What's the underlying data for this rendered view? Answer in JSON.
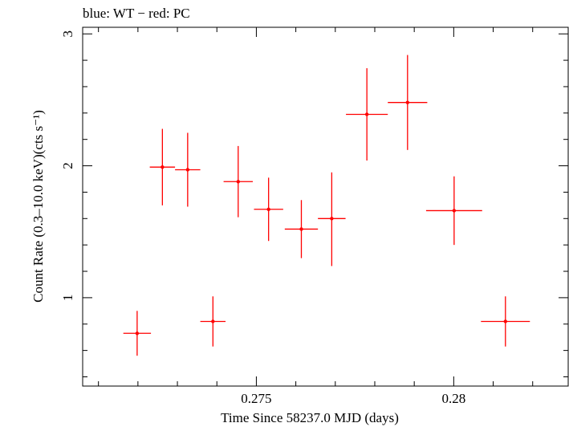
{
  "chart_data": {
    "type": "scatter",
    "title": "blue: WT − red: PC",
    "xlabel": "Time Since 58237.0 MJD (days)",
    "ylabel": "Count Rate (0.3–10.0 keV)(cts s⁻¹)",
    "xlim": [
      0.2706,
      0.2829
    ],
    "ylim": [
      0.33,
      3.05
    ],
    "x_ticks": [
      {
        "value": 0.275,
        "label": "0.275"
      },
      {
        "value": 0.28,
        "label": "0.28"
      }
    ],
    "y_ticks": [
      {
        "value": 1,
        "label": "1"
      },
      {
        "value": 2,
        "label": "2"
      },
      {
        "value": 3,
        "label": "3"
      }
    ],
    "colors": {
      "PC": "#ff0000",
      "axes": "#000000"
    },
    "series": [
      {
        "name": "PC",
        "color": "#ff0000",
        "points": [
          {
            "x": 0.27198,
            "xerr": 0.00035,
            "y": 0.73,
            "ylo": 0.56,
            "yhi": 0.9
          },
          {
            "x": 0.27262,
            "xerr": 0.00032,
            "y": 1.99,
            "ylo": 1.7,
            "yhi": 2.28
          },
          {
            "x": 0.27326,
            "xerr": 0.00032,
            "y": 1.97,
            "ylo": 1.69,
            "yhi": 2.25
          },
          {
            "x": 0.2739,
            "xerr": 0.00032,
            "y": 0.82,
            "ylo": 0.63,
            "yhi": 1.01
          },
          {
            "x": 0.27454,
            "xerr": 0.00037,
            "y": 1.88,
            "ylo": 1.61,
            "yhi": 2.15
          },
          {
            "x": 0.27531,
            "xerr": 0.00037,
            "y": 1.67,
            "ylo": 1.43,
            "yhi": 1.91
          },
          {
            "x": 0.27614,
            "xerr": 0.00042,
            "y": 1.52,
            "ylo": 1.3,
            "yhi": 1.74
          },
          {
            "x": 0.27691,
            "xerr": 0.00035,
            "y": 1.6,
            "ylo": 1.24,
            "yhi": 1.95
          },
          {
            "x": 0.2778,
            "xerr": 0.00053,
            "y": 2.39,
            "ylo": 2.04,
            "yhi": 2.74
          },
          {
            "x": 0.27883,
            "xerr": 0.0005,
            "y": 2.48,
            "ylo": 2.12,
            "yhi": 2.84
          },
          {
            "x": 0.28001,
            "xerr": 0.00071,
            "y": 1.66,
            "ylo": 1.4,
            "yhi": 1.92
          },
          {
            "x": 0.28131,
            "xerr": 0.00062,
            "y": 0.82,
            "ylo": 0.63,
            "yhi": 1.01
          }
        ]
      }
    ]
  }
}
